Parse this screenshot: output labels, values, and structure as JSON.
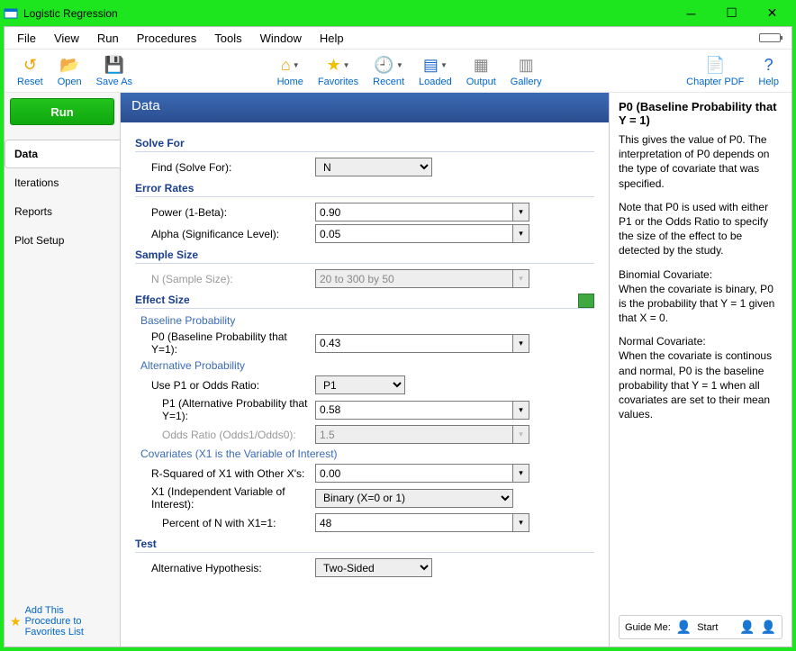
{
  "window": {
    "title": "Logistic Regression"
  },
  "menus": [
    "File",
    "View",
    "Run",
    "Procedures",
    "Tools",
    "Window",
    "Help"
  ],
  "toolbar": {
    "left": [
      {
        "name": "reset",
        "label": "Reset",
        "icon": "↺",
        "color": "#f0a000"
      },
      {
        "name": "open",
        "label": "Open",
        "icon": "📂",
        "color": "#f0a000"
      },
      {
        "name": "saveas",
        "label": "Save As",
        "icon": "💾",
        "color": "#1a66cc"
      }
    ],
    "center": [
      {
        "name": "home",
        "label": "Home",
        "icon": "⌂",
        "drop": true,
        "color": "#f0a000"
      },
      {
        "name": "favorites",
        "label": "Favorites",
        "icon": "★",
        "drop": true,
        "color": "#f0c000"
      },
      {
        "name": "recent",
        "label": "Recent",
        "icon": "🕘",
        "drop": true,
        "color": "#888"
      },
      {
        "name": "loaded",
        "label": "Loaded",
        "icon": "▤",
        "drop": true,
        "color": "#1a66cc"
      },
      {
        "name": "output",
        "label": "Output",
        "icon": "▦",
        "drop": false,
        "color": "#888"
      },
      {
        "name": "gallery",
        "label": "Gallery",
        "icon": "▥",
        "drop": false,
        "color": "#888"
      }
    ],
    "right": [
      {
        "name": "chapterpdf",
        "label": "Chapter PDF",
        "icon": "📄",
        "color": "#d11"
      },
      {
        "name": "help",
        "label": "Help",
        "icon": "?",
        "color": "#1a66cc"
      }
    ]
  },
  "left": {
    "run": "Run",
    "tabs": [
      "Data",
      "Iterations",
      "Reports",
      "Plot Setup"
    ],
    "active": 0,
    "fav": {
      "l1": "Add This",
      "l2": "Procedure to",
      "l3": "Favorites List"
    }
  },
  "panel": {
    "title": "Data"
  },
  "form": {
    "solveFor": {
      "title": "Solve For",
      "findLabel": "Find (Solve For):",
      "findValue": "N"
    },
    "errorRates": {
      "title": "Error Rates",
      "powerLabel": "Power (1-Beta):",
      "powerValue": "0.90",
      "alphaLabel": "Alpha (Significance Level):",
      "alphaValue": "0.05"
    },
    "sampleSize": {
      "title": "Sample Size",
      "nLabel": "N (Sample Size):",
      "nValue": "20 to 300 by 50"
    },
    "effectSize": {
      "title": "Effect Size",
      "baseline": {
        "sub": "Baseline Probability",
        "p0Label": "P0 (Baseline Probability that Y=1):",
        "p0Value": "0.43"
      },
      "alt": {
        "sub": "Alternative Probability",
        "useLabel": "Use P1 or Odds Ratio:",
        "useValue": "P1",
        "p1Label": "P1 (Alternative Probability that Y=1):",
        "p1Value": "0.58",
        "orLabel": "Odds Ratio (Odds1/Odds0):",
        "orValue": "1.5"
      },
      "cov": {
        "sub": "Covariates (X1 is the Variable of Interest)",
        "r2Label": "R-Squared of X1 with Other X's:",
        "r2Value": "0.00",
        "x1Label": "X1 (Independent Variable of Interest):",
        "x1Value": "Binary (X=0 or 1)",
        "pctLabel": "Percent of N with X1=1:",
        "pctValue": "48"
      }
    },
    "test": {
      "title": "Test",
      "altHypLabel": "Alternative Hypothesis:",
      "altHypValue": "Two-Sided"
    }
  },
  "help": {
    "title": "P0 (Baseline Probability that Y = 1)",
    "p1": "This gives the value of P0. The interpretation of P0 depends on the type of covariate that was specified.",
    "p2": "Note that P0 is used with either P1 or the Odds Ratio to specify the size of the effect to be detected by the study.",
    "p3": "Binomial Covariate:",
    "p4": "When the covariate is binary, P0 is the probability that Y = 1 given that X = 0.",
    "p5": "Normal Covariate:",
    "p6": "When the covariate is continous and normal, P0 is the baseline probability that Y = 1 when all covariates are set to their mean values.",
    "guide": {
      "label": "Guide Me:",
      "start": "Start"
    }
  }
}
